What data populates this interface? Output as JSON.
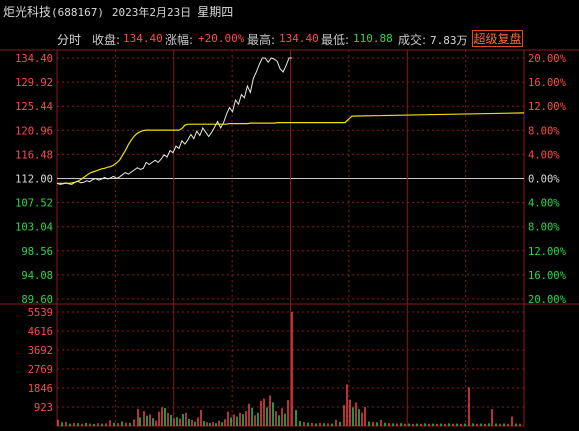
{
  "header": {
    "name": "炬光科技",
    "code": "(688167)",
    "date": "2023年2月23日",
    "weekday": "星期四"
  },
  "infobar": {
    "mode": "分时",
    "close_label": "收盘:",
    "close_value": "134.40",
    "change_label": "涨幅:",
    "change_value": "+20.00%",
    "high_label": "最高:",
    "high_value": "134.40",
    "low_label": "最低:",
    "low_value": "110.88",
    "volume_label": "成交:",
    "volume_value": "7.83万",
    "super_button": "超级复盘"
  },
  "colors": {
    "up": "#ff4a4a",
    "down": "#2bd84a",
    "price_line": "#e8e8e8",
    "avg_line": "#f0e000",
    "grid": "#8a1a1a"
  },
  "chart_data": [
    {
      "type": "line",
      "title": "",
      "prev_close": 112.0,
      "ylim": [
        89.6,
        134.4
      ],
      "y_ticks_left": [
        "134.40",
        "129.92",
        "125.44",
        "120.96",
        "116.48",
        "112.00",
        "107.52",
        "103.04",
        "98.56",
        "94.08",
        "89.60"
      ],
      "y_ticks_right": [
        "20.00%",
        "16.00%",
        "12.00%",
        "8.00%",
        "4.00%",
        "0.00%",
        "4.00%",
        "8.00%",
        "12.00%",
        "16.00%",
        "20.00%"
      ],
      "x_minutes": 240,
      "series": [
        {
          "key": "price",
          "values": [
            111.1,
            110.9,
            111.0,
            111.2,
            111.0,
            110.9,
            111.3,
            111.5,
            111.2,
            111.3,
            111.6,
            111.4,
            111.8,
            112.0,
            111.7,
            111.9,
            112.2,
            111.9,
            112.1,
            112.4,
            112.0,
            112.3,
            112.7,
            113.1,
            112.8,
            113.2,
            113.6,
            114.0,
            113.7,
            113.9,
            115.0,
            114.6,
            115.0,
            115.4,
            115.0,
            115.6,
            116.4,
            116.0,
            117.2,
            116.8,
            118.0,
            117.6,
            119.0,
            118.4,
            119.2,
            120.2,
            119.4,
            120.8,
            120.0,
            121.4,
            120.6,
            119.8,
            120.6,
            121.6,
            122.6,
            121.4,
            122.4,
            124.0,
            125.2,
            124.4,
            126.6,
            125.8,
            127.6,
            127.0,
            129.2,
            128.0,
            130.6,
            131.8,
            133.2,
            134.4,
            134.4,
            133.6,
            134.4,
            134.2,
            133.8,
            132.4,
            131.8,
            133.0,
            134.4,
            134.4
          ]
        },
        {
          "key": "avg",
          "values": [
            111.1,
            111.1,
            111.1,
            111.1,
            111.1,
            111.2,
            111.3,
            111.5,
            111.8,
            112.2,
            112.6,
            113.0,
            113.2,
            113.4,
            113.6,
            113.8,
            113.9,
            114.1,
            114.2,
            114.5,
            114.9,
            115.4,
            116.3,
            117.2,
            118.3,
            119.2,
            119.9,
            120.4,
            120.7,
            120.9,
            121.0,
            121.0,
            121.0,
            121.0,
            121.0,
            121.0,
            121.0,
            121.0,
            121.0,
            121.0,
            121.0,
            121.0,
            121.3,
            121.9,
            122.1,
            122.1,
            122.1,
            122.1,
            122.1,
            122.1,
            122.1,
            122.1,
            122.1,
            122.1,
            122.1,
            122.1,
            122.1,
            122.1,
            122.2,
            122.2,
            122.2,
            122.2,
            122.2,
            122.2,
            122.2,
            122.3,
            122.3,
            122.3,
            122.3,
            122.3,
            122.3,
            122.3,
            122.3,
            122.3,
            122.4,
            122.4,
            122.4,
            122.4,
            122.4,
            122.4
          ]
        }
      ]
    },
    {
      "type": "bar",
      "title": "",
      "ylim": [
        0,
        5539
      ],
      "y_ticks": [
        "5539",
        "4616",
        "3692",
        "2769",
        "1846",
        "923"
      ],
      "bars": [
        {
          "x": 58,
          "v": 300,
          "c": "r"
        },
        {
          "x": 62,
          "v": 180,
          "c": "g"
        },
        {
          "x": 66,
          "v": 200,
          "c": "r"
        },
        {
          "x": 70,
          "v": 120,
          "c": "g"
        },
        {
          "x": 74,
          "v": 160,
          "c": "r"
        },
        {
          "x": 78,
          "v": 140,
          "c": "g"
        },
        {
          "x": 82,
          "v": 110,
          "c": "r"
        },
        {
          "x": 86,
          "v": 150,
          "c": "g"
        },
        {
          "x": 90,
          "v": 120,
          "c": "r"
        },
        {
          "x": 94,
          "v": 100,
          "c": "g"
        },
        {
          "x": 98,
          "v": 140,
          "c": "r"
        },
        {
          "x": 102,
          "v": 110,
          "c": "g"
        },
        {
          "x": 106,
          "v": 130,
          "c": "r"
        },
        {
          "x": 110,
          "v": 280,
          "c": "r"
        },
        {
          "x": 114,
          "v": 160,
          "c": "g"
        },
        {
          "x": 118,
          "v": 140,
          "c": "r"
        },
        {
          "x": 122,
          "v": 220,
          "c": "g"
        },
        {
          "x": 126,
          "v": 160,
          "c": "r"
        },
        {
          "x": 130,
          "v": 150,
          "c": "g"
        },
        {
          "x": 134,
          "v": 320,
          "c": "r"
        },
        {
          "x": 138,
          "v": 830,
          "c": "r"
        },
        {
          "x": 140,
          "v": 420,
          "c": "g"
        },
        {
          "x": 144,
          "v": 720,
          "c": "r"
        },
        {
          "x": 147,
          "v": 500,
          "c": "g"
        },
        {
          "x": 150,
          "v": 560,
          "c": "r"
        },
        {
          "x": 153,
          "v": 380,
          "c": "g"
        },
        {
          "x": 156,
          "v": 260,
          "c": "r"
        },
        {
          "x": 159,
          "v": 700,
          "c": "r"
        },
        {
          "x": 162,
          "v": 910,
          "c": "r"
        },
        {
          "x": 165,
          "v": 880,
          "c": "g"
        },
        {
          "x": 168,
          "v": 640,
          "c": "r"
        },
        {
          "x": 171,
          "v": 540,
          "c": "g"
        },
        {
          "x": 174,
          "v": 380,
          "c": "r"
        },
        {
          "x": 177,
          "v": 430,
          "c": "g"
        },
        {
          "x": 180,
          "v": 370,
          "c": "r"
        },
        {
          "x": 183,
          "v": 580,
          "c": "g"
        },
        {
          "x": 186,
          "v": 640,
          "c": "r"
        },
        {
          "x": 189,
          "v": 340,
          "c": "g"
        },
        {
          "x": 192,
          "v": 300,
          "c": "r"
        },
        {
          "x": 195,
          "v": 200,
          "c": "g"
        },
        {
          "x": 198,
          "v": 420,
          "c": "r"
        },
        {
          "x": 201,
          "v": 780,
          "c": "r"
        },
        {
          "x": 204,
          "v": 240,
          "c": "g"
        },
        {
          "x": 207,
          "v": 180,
          "c": "r"
        },
        {
          "x": 210,
          "v": 150,
          "c": "g"
        },
        {
          "x": 213,
          "v": 190,
          "c": "r"
        },
        {
          "x": 216,
          "v": 140,
          "c": "g"
        },
        {
          "x": 219,
          "v": 260,
          "c": "r"
        },
        {
          "x": 222,
          "v": 180,
          "c": "g"
        },
        {
          "x": 225,
          "v": 330,
          "c": "r"
        },
        {
          "x": 228,
          "v": 700,
          "c": "r"
        },
        {
          "x": 231,
          "v": 420,
          "c": "g"
        },
        {
          "x": 234,
          "v": 560,
          "c": "r"
        },
        {
          "x": 237,
          "v": 460,
          "c": "g"
        },
        {
          "x": 240,
          "v": 640,
          "c": "r"
        },
        {
          "x": 243,
          "v": 580,
          "c": "g"
        },
        {
          "x": 246,
          "v": 720,
          "c": "r"
        },
        {
          "x": 249,
          "v": 1080,
          "c": "r"
        },
        {
          "x": 252,
          "v": 880,
          "c": "g"
        },
        {
          "x": 255,
          "v": 520,
          "c": "r"
        },
        {
          "x": 258,
          "v": 640,
          "c": "g"
        },
        {
          "x": 261,
          "v": 1220,
          "c": "r"
        },
        {
          "x": 264,
          "v": 1340,
          "c": "r"
        },
        {
          "x": 267,
          "v": 900,
          "c": "g"
        },
        {
          "x": 270,
          "v": 1480,
          "c": "r"
        },
        {
          "x": 273,
          "v": 1150,
          "c": "g"
        },
        {
          "x": 276,
          "v": 720,
          "c": "r"
        },
        {
          "x": 279,
          "v": 520,
          "c": "g"
        },
        {
          "x": 282,
          "v": 860,
          "c": "r"
        },
        {
          "x": 285,
          "v": 600,
          "c": "g"
        },
        {
          "x": 288,
          "v": 1260,
          "c": "r"
        },
        {
          "x": 292,
          "v": 5539,
          "c": "r"
        },
        {
          "x": 296,
          "v": 780,
          "c": "g"
        },
        {
          "x": 300,
          "v": 240,
          "c": "g"
        },
        {
          "x": 304,
          "v": 200,
          "c": "r"
        },
        {
          "x": 308,
          "v": 160,
          "c": "g"
        },
        {
          "x": 312,
          "v": 150,
          "c": "r"
        },
        {
          "x": 316,
          "v": 120,
          "c": "g"
        },
        {
          "x": 320,
          "v": 160,
          "c": "r"
        },
        {
          "x": 324,
          "v": 140,
          "c": "g"
        },
        {
          "x": 328,
          "v": 130,
          "c": "r"
        },
        {
          "x": 332,
          "v": 120,
          "c": "g"
        },
        {
          "x": 336,
          "v": 300,
          "c": "r"
        },
        {
          "x": 340,
          "v": 200,
          "c": "g"
        },
        {
          "x": 344,
          "v": 1020,
          "c": "r"
        },
        {
          "x": 347,
          "v": 2020,
          "c": "r"
        },
        {
          "x": 350,
          "v": 1280,
          "c": "r"
        },
        {
          "x": 353,
          "v": 900,
          "c": "g"
        },
        {
          "x": 356,
          "v": 1140,
          "c": "r"
        },
        {
          "x": 359,
          "v": 820,
          "c": "g"
        },
        {
          "x": 362,
          "v": 650,
          "c": "r"
        },
        {
          "x": 365,
          "v": 920,
          "c": "r"
        },
        {
          "x": 369,
          "v": 220,
          "c": "g"
        },
        {
          "x": 373,
          "v": 200,
          "c": "r"
        },
        {
          "x": 377,
          "v": 180,
          "c": "g"
        },
        {
          "x": 381,
          "v": 300,
          "c": "r"
        },
        {
          "x": 385,
          "v": 160,
          "c": "g"
        },
        {
          "x": 389,
          "v": 140,
          "c": "r"
        },
        {
          "x": 393,
          "v": 130,
          "c": "g"
        },
        {
          "x": 397,
          "v": 120,
          "c": "r"
        },
        {
          "x": 401,
          "v": 140,
          "c": "g"
        },
        {
          "x": 405,
          "v": 110,
          "c": "r"
        },
        {
          "x": 409,
          "v": 120,
          "c": "g"
        },
        {
          "x": 413,
          "v": 110,
          "c": "r"
        },
        {
          "x": 417,
          "v": 120,
          "c": "g"
        },
        {
          "x": 421,
          "v": 110,
          "c": "r"
        },
        {
          "x": 425,
          "v": 130,
          "c": "g"
        },
        {
          "x": 429,
          "v": 110,
          "c": "r"
        },
        {
          "x": 433,
          "v": 120,
          "c": "g"
        },
        {
          "x": 437,
          "v": 110,
          "c": "r"
        },
        {
          "x": 441,
          "v": 120,
          "c": "g"
        },
        {
          "x": 445,
          "v": 110,
          "c": "r"
        },
        {
          "x": 449,
          "v": 130,
          "c": "g"
        },
        {
          "x": 453,
          "v": 110,
          "c": "r"
        },
        {
          "x": 457,
          "v": 120,
          "c": "g"
        },
        {
          "x": 461,
          "v": 110,
          "c": "r"
        },
        {
          "x": 465,
          "v": 120,
          "c": "g"
        },
        {
          "x": 469,
          "v": 1880,
          "c": "r"
        },
        {
          "x": 473,
          "v": 130,
          "c": "g"
        },
        {
          "x": 477,
          "v": 110,
          "c": "r"
        },
        {
          "x": 481,
          "v": 120,
          "c": "g"
        },
        {
          "x": 485,
          "v": 110,
          "c": "r"
        },
        {
          "x": 489,
          "v": 130,
          "c": "g"
        },
        {
          "x": 492,
          "v": 820,
          "c": "r"
        },
        {
          "x": 496,
          "v": 120,
          "c": "g"
        },
        {
          "x": 500,
          "v": 110,
          "c": "r"
        },
        {
          "x": 504,
          "v": 120,
          "c": "g"
        },
        {
          "x": 508,
          "v": 110,
          "c": "r"
        },
        {
          "x": 512,
          "v": 460,
          "c": "r"
        },
        {
          "x": 516,
          "v": 120,
          "c": "g"
        },
        {
          "x": 520,
          "v": 110,
          "c": "r"
        }
      ]
    }
  ]
}
